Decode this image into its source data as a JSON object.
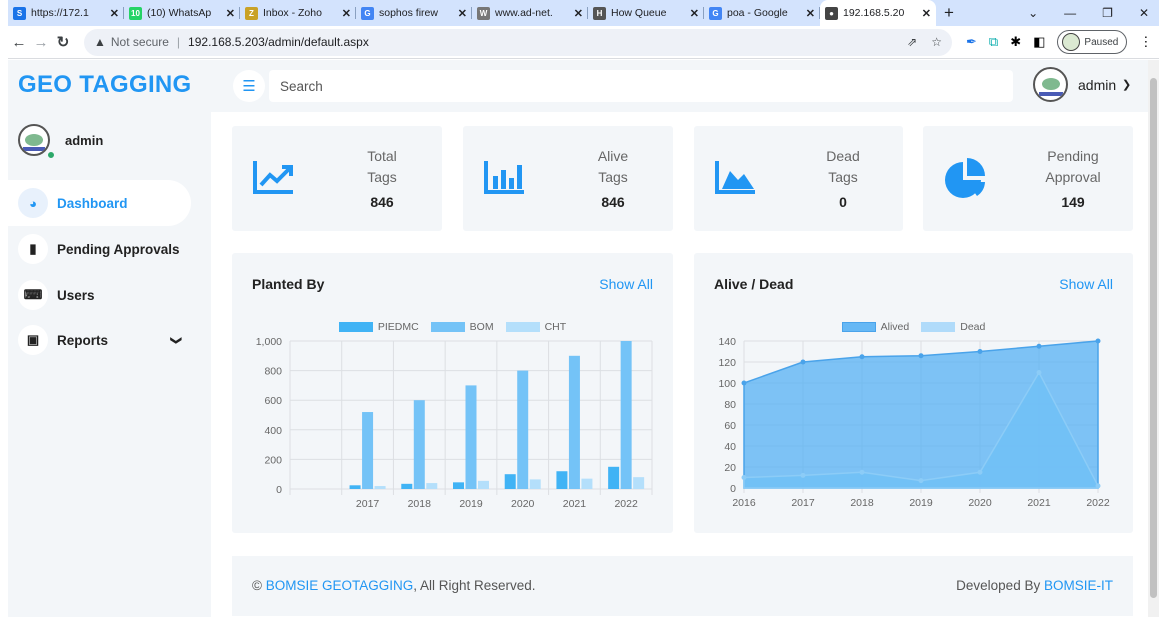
{
  "browser": {
    "tabs": [
      {
        "title": "https://172.1",
        "icon_color": "#1a73e8",
        "icon_glyph": "S"
      },
      {
        "title": "(10) WhatsAp",
        "icon_color": "#25d366",
        "icon_glyph": "10"
      },
      {
        "title": "Inbox - Zoho",
        "icon_color": "#c9a227",
        "icon_glyph": "Z"
      },
      {
        "title": "sophos firew",
        "icon_color": "#4285f4",
        "icon_glyph": "G"
      },
      {
        "title": "www.ad-net.",
        "icon_color": "#777777",
        "icon_glyph": "W"
      },
      {
        "title": "How Queue",
        "icon_color": "#555555",
        "icon_glyph": "H"
      },
      {
        "title": "poa - Google",
        "icon_color": "#4285f4",
        "icon_glyph": "G"
      },
      {
        "title": "192.168.5.20",
        "icon_color": "#444444",
        "icon_glyph": "●"
      }
    ],
    "security_label": "Not secure",
    "url": "192.168.5.203/admin/default.aspx",
    "profile_status": "Paused"
  },
  "app": {
    "brand": "GEO TAGGING",
    "user": "admin",
    "search_placeholder": "Search"
  },
  "menu": [
    {
      "label": "Dashboard",
      "icon": "dashboard-icon",
      "active": true
    },
    {
      "label": "Pending Approvals",
      "icon": "bar-chart-icon",
      "active": false
    },
    {
      "label": "Users",
      "icon": "keyboard-icon",
      "active": false
    },
    {
      "label": "Reports",
      "icon": "laptop-icon",
      "active": false,
      "expandable": true
    }
  ],
  "stats": [
    {
      "label1": "Total",
      "label2": "Tags",
      "value": "846",
      "icon": "line-trend-icon"
    },
    {
      "label1": "Alive",
      "label2": "Tags",
      "value": "846",
      "icon": "bar-stat-icon"
    },
    {
      "label1": "Dead",
      "label2": "Tags",
      "value": "0",
      "icon": "area-stat-icon"
    },
    {
      "label1": "Pending",
      "label2": "Approval",
      "value": "149",
      "icon": "pie-stat-icon"
    }
  ],
  "charts": {
    "planted": {
      "title": "Planted By",
      "show_all": "Show All"
    },
    "alive_dead": {
      "title": "Alive / Dead",
      "show_all": "Show All"
    }
  },
  "chart_data": [
    {
      "type": "bar",
      "title": "Planted By",
      "categories": [
        "",
        "2017",
        "2018",
        "2019",
        "2020",
        "2021",
        "2022"
      ],
      "series": [
        {
          "name": "PIEDMC",
          "color": "#40b3f5",
          "values": [
            0,
            25,
            35,
            45,
            100,
            120,
            150
          ]
        },
        {
          "name": "BOM",
          "color": "#74c3f7",
          "values": [
            0,
            520,
            600,
            700,
            800,
            900,
            1000
          ]
        },
        {
          "name": "CHT",
          "color": "#b4dffb",
          "values": [
            0,
            20,
            40,
            55,
            65,
            70,
            80
          ]
        }
      ],
      "ylim": [
        0,
        1000
      ],
      "yticks": [
        "0",
        "200",
        "400",
        "600",
        "800",
        "1,000"
      ],
      "legend": "top"
    },
    {
      "type": "area",
      "title": "Alive / Dead",
      "x": [
        "2016",
        "2017",
        "2018",
        "2019",
        "2020",
        "2021",
        "2022"
      ],
      "series": [
        {
          "name": "Alived",
          "color": "#66b8f5",
          "values": [
            100,
            120,
            125,
            126,
            130,
            135,
            140
          ]
        },
        {
          "name": "Dead",
          "color": "#b0dbfa",
          "values": [
            10,
            12,
            15,
            7,
            15,
            110,
            2
          ]
        }
      ],
      "ylim": [
        0,
        140
      ],
      "yticks": [
        "0",
        "20",
        "40",
        "60",
        "80",
        "100",
        "120",
        "140"
      ],
      "legend": "top"
    }
  ],
  "footer": {
    "copyright_symbol": "©",
    "company": "BOMSIE GEOTAGGING",
    "rights": ", All Right Reserved.",
    "developed_by": "Developed By",
    "developer": "BOMSIE-IT"
  }
}
